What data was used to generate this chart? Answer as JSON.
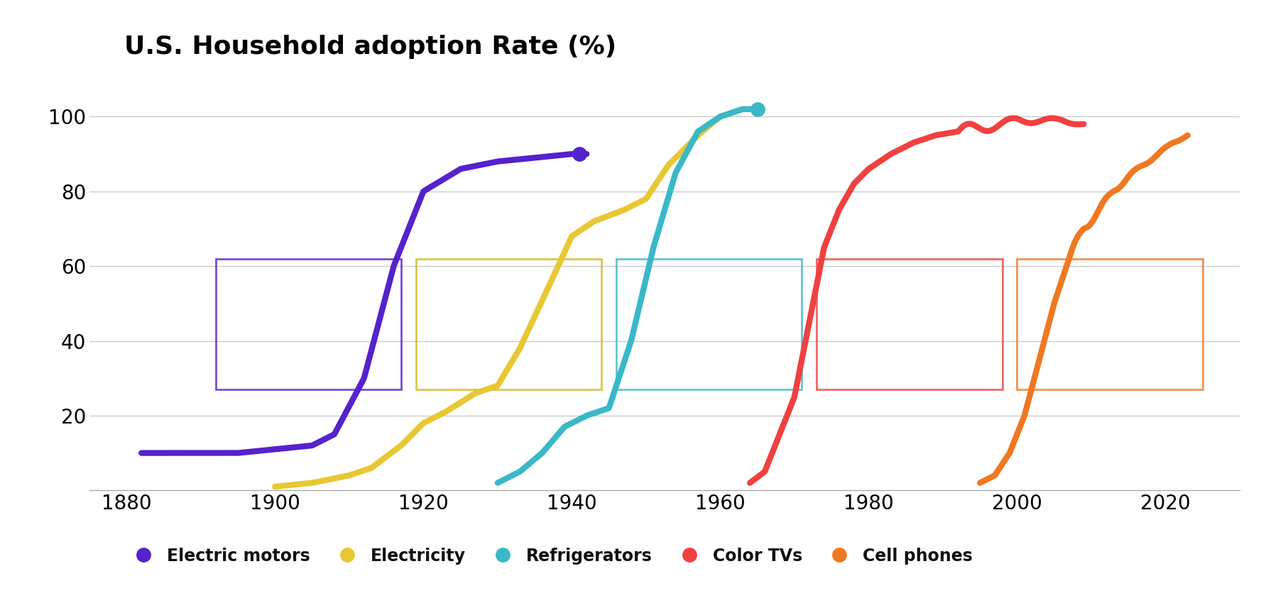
{
  "title": "U.S. Household adoption Rate (%)",
  "title_fontsize": 26,
  "title_fontweight": "bold",
  "xlim": [
    1875,
    2030
  ],
  "ylim": [
    0,
    112
  ],
  "yticks": [
    20,
    40,
    60,
    80,
    100
  ],
  "xticks": [
    1880,
    1900,
    1920,
    1940,
    1960,
    1980,
    2000,
    2020
  ],
  "background_color": "#ffffff",
  "grid_color": "#cccccc",
  "tick_fontsize": 20,
  "legend_fontsize": 17,
  "series": {
    "electric_motors": {
      "label": "Electric motors",
      "color": "#5522cc",
      "linewidth": 6,
      "marker_x": 1941,
      "marker_y": 90,
      "x": [
        1882,
        1886,
        1890,
        1895,
        1900,
        1905,
        1908,
        1912,
        1916,
        1920,
        1925,
        1930,
        1935,
        1940,
        1942
      ],
      "y": [
        10,
        10,
        10,
        10,
        11,
        12,
        15,
        30,
        60,
        80,
        86,
        88,
        89,
        90,
        90
      ]
    },
    "electricity": {
      "label": "Electricity",
      "color": "#e8c832",
      "linewidth": 6,
      "x": [
        1900,
        1905,
        1910,
        1913,
        1917,
        1920,
        1923,
        1927,
        1930,
        1933,
        1937,
        1940,
        1943,
        1947,
        1950,
        1953,
        1957,
        1960,
        1963
      ],
      "y": [
        1,
        2,
        4,
        6,
        12,
        18,
        21,
        26,
        28,
        38,
        55,
        68,
        72,
        75,
        78,
        87,
        95,
        100,
        102
      ]
    },
    "refrigerators": {
      "label": "Refrigerators",
      "color": "#3ab8c8",
      "linewidth": 6,
      "marker_x": 1965,
      "marker_y": 102,
      "x": [
        1930,
        1933,
        1936,
        1939,
        1942,
        1945,
        1948,
        1951,
        1954,
        1957,
        1960,
        1963,
        1965
      ],
      "y": [
        2,
        5,
        10,
        17,
        20,
        22,
        40,
        65,
        85,
        96,
        100,
        102,
        102
      ]
    },
    "color_tvs": {
      "label": "Color TVs",
      "color": "#f04040",
      "linewidth": 6,
      "x": [
        1964,
        1966,
        1968,
        1970,
        1972,
        1974,
        1976,
        1978,
        1980,
        1983,
        1986,
        1989,
        1992,
        1995,
        1998,
        2000,
        2003,
        2006,
        2009
      ],
      "y": [
        2,
        5,
        15,
        25,
        45,
        65,
        75,
        82,
        86,
        90,
        93,
        95,
        96,
        97,
        98,
        99,
        99,
        99,
        98
      ]
    },
    "cell_phones": {
      "label": "Cell phones",
      "color": "#f07820",
      "linewidth": 6,
      "x": [
        1995,
        1997,
        1999,
        2001,
        2003,
        2005,
        2007,
        2009,
        2011,
        2013,
        2015,
        2017,
        2019,
        2021,
        2023
      ],
      "y": [
        2,
        4,
        10,
        20,
        35,
        50,
        62,
        70,
        75,
        80,
        84,
        87,
        90,
        93,
        95
      ]
    }
  },
  "image_boxes": [
    {
      "xmin": 1892,
      "xmax": 1917,
      "ymin": 27,
      "ymax": 62,
      "color": "#5522cc"
    },
    {
      "xmin": 1919,
      "xmax": 1944,
      "ymin": 27,
      "ymax": 62,
      "color": "#d4b820"
    },
    {
      "xmin": 1946,
      "xmax": 1971,
      "ymin": 27,
      "ymax": 62,
      "color": "#3ab8c8"
    },
    {
      "xmin": 1973,
      "xmax": 1998,
      "ymin": 27,
      "ymax": 62,
      "color": "#f04040"
    },
    {
      "xmin": 2000,
      "xmax": 2025,
      "ymin": 27,
      "ymax": 62,
      "color": "#f07820"
    }
  ]
}
